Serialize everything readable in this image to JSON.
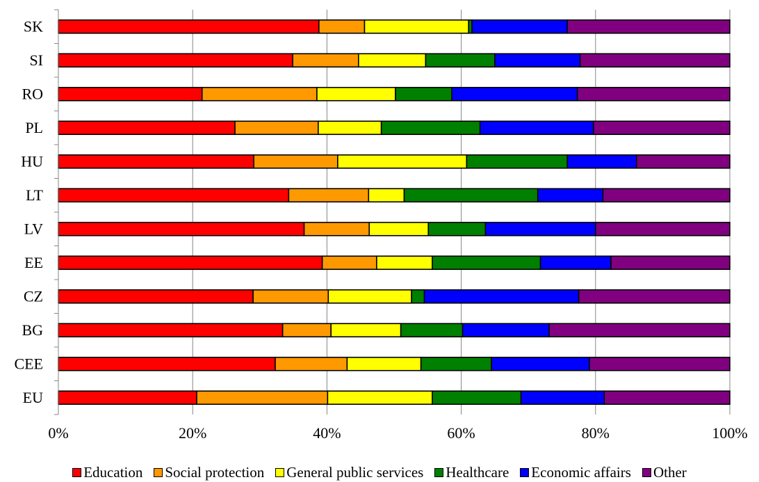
{
  "chart_data": {
    "type": "bar",
    "orientation": "horizontal",
    "stacked": "percent",
    "categories": [
      "SK",
      "SI",
      "RO",
      "PL",
      "HU",
      "LT",
      "LV",
      "EE",
      "CZ",
      "BG",
      "CEE",
      "EU"
    ],
    "series": [
      {
        "name": "Education",
        "color": "#ff0000",
        "values": [
          38.8,
          34.9,
          21.4,
          26.3,
          29.1,
          34.3,
          36.6,
          39.3,
          29.0,
          33.4,
          32.3,
          20.6
        ]
      },
      {
        "name": "Social protection",
        "color": "#ff9900",
        "values": [
          6.8,
          9.8,
          17.1,
          12.4,
          12.5,
          11.9,
          9.7,
          8.1,
          11.2,
          7.2,
          10.7,
          19.5
        ]
      },
      {
        "name": "General public services",
        "color": "#ffff00",
        "values": [
          15.5,
          10.0,
          11.7,
          9.4,
          19.2,
          5.3,
          8.8,
          8.3,
          12.4,
          10.4,
          11.0,
          15.6
        ]
      },
      {
        "name": "Healthcare",
        "color": "#008000",
        "values": [
          0.5,
          10.3,
          8.4,
          14.7,
          15.0,
          19.9,
          8.5,
          16.1,
          1.9,
          9.2,
          10.5,
          13.2
        ]
      },
      {
        "name": "Economic affairs",
        "color": "#0000ff",
        "values": [
          14.2,
          12.7,
          18.7,
          16.9,
          10.3,
          9.7,
          16.4,
          10.5,
          23.0,
          12.9,
          14.6,
          12.4
        ]
      },
      {
        "name": "Other",
        "color": "#800080",
        "values": [
          24.2,
          22.3,
          22.7,
          20.3,
          13.9,
          18.9,
          20.0,
          17.7,
          22.5,
          26.9,
          20.9,
          18.7
        ]
      }
    ],
    "xaxis": {
      "ticks": [
        "0%",
        "20%",
        "40%",
        "60%",
        "80%",
        "100%"
      ],
      "range": [
        0,
        100
      ]
    },
    "grid": "vertical",
    "legend_position": "bottom",
    "title": "",
    "xlabel": "",
    "ylabel": ""
  }
}
